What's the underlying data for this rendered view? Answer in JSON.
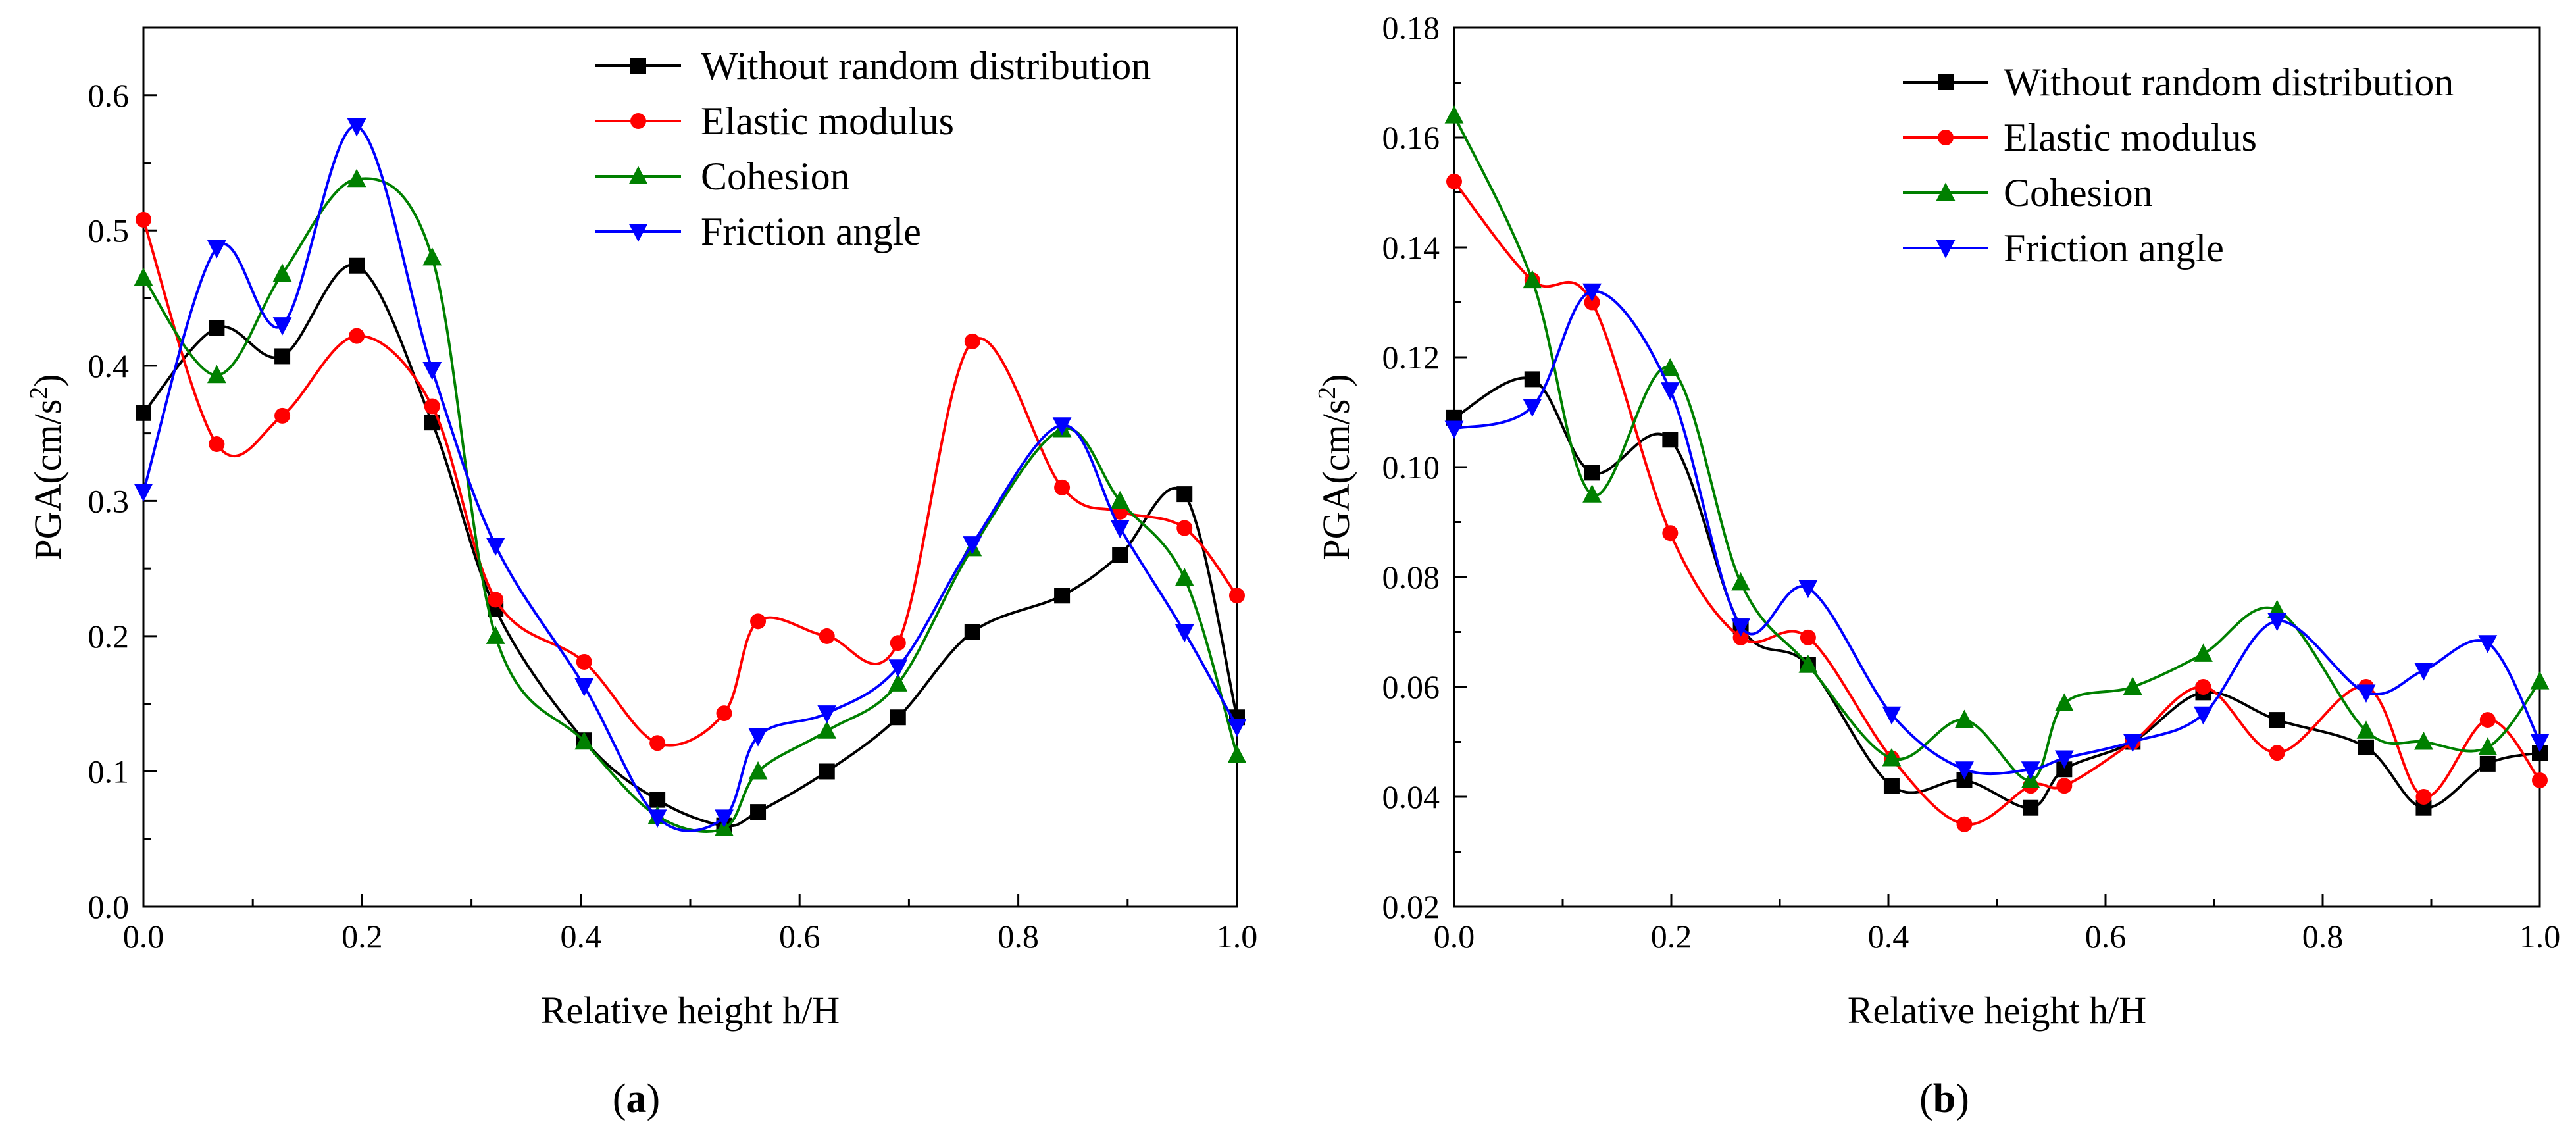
{
  "chart_data": [
    {
      "type": "line",
      "panel_label": "(a)",
      "panel_letter": "a",
      "xlabel": "Relative height h/H",
      "ylabel_prefix": "PGA(cm/s",
      "ylabel_sup": "2",
      "ylabel_suffix": ")",
      "xlim": [
        0,
        1
      ],
      "ylim": [
        0,
        0.65
      ],
      "xticks": [
        0,
        0.2,
        0.4,
        0.6,
        0.8,
        1.0
      ],
      "xtick_labels": [
        "0.0",
        "0.2",
        "0.4",
        "0.6",
        "0.8",
        "1.0"
      ],
      "yticks": [
        0,
        0.1,
        0.2,
        0.3,
        0.4,
        0.5,
        0.6
      ],
      "ytick_labels": [
        "0.0",
        "0.1",
        "0.2",
        "0.3",
        "0.4",
        "0.5",
        "0.6"
      ],
      "legend_position": "top-right",
      "x": [
        0.0,
        0.067,
        0.127,
        0.195,
        0.264,
        0.322,
        0.403,
        0.47,
        0.531,
        0.562,
        0.625,
        0.69,
        0.758,
        0.84,
        0.893,
        0.952,
        1.0
      ],
      "series": [
        {
          "name": "Without random distribution",
          "color": "#000000",
          "marker": "square",
          "values": [
            0.365,
            0.428,
            0.407,
            0.474,
            0.358,
            0.22,
            0.123,
            0.079,
            0.06,
            0.07,
            0.1,
            0.14,
            0.203,
            0.23,
            0.26,
            0.305,
            0.14
          ]
        },
        {
          "name": "Elastic modulus",
          "color": "#ff0000",
          "marker": "circle",
          "values": [
            0.508,
            0.342,
            0.363,
            0.422,
            0.37,
            0.227,
            0.181,
            0.121,
            0.143,
            0.211,
            0.2,
            0.195,
            0.418,
            0.31,
            0.292,
            0.28,
            0.23
          ]
        },
        {
          "name": "Cohesion",
          "color": "#008000",
          "marker": "triangle-up",
          "values": [
            0.465,
            0.393,
            0.468,
            0.538,
            0.48,
            0.2,
            0.122,
            0.067,
            0.058,
            0.1,
            0.13,
            0.165,
            0.265,
            0.353,
            0.3,
            0.243,
            0.112
          ]
        },
        {
          "name": "Friction angle",
          "color": "#0000ff",
          "marker": "triangle-down",
          "values": [
            0.307,
            0.487,
            0.43,
            0.577,
            0.397,
            0.267,
            0.163,
            0.066,
            0.066,
            0.126,
            0.143,
            0.177,
            0.268,
            0.356,
            0.28,
            0.203,
            0.133
          ]
        }
      ]
    },
    {
      "type": "line",
      "panel_label": "(b)",
      "panel_letter": "b",
      "xlabel": "Relative height h/H",
      "ylabel_prefix": "PGA(cm/s",
      "ylabel_sup": "2",
      "ylabel_suffix": ")",
      "xlim": [
        0,
        1
      ],
      "ylim": [
        0.02,
        0.18
      ],
      "xticks": [
        0,
        0.2,
        0.4,
        0.6,
        0.8,
        1.0
      ],
      "xtick_labels": [
        "0.0",
        "0.2",
        "0.4",
        "0.6",
        "0.8",
        "1.0"
      ],
      "yticks": [
        0.02,
        0.04,
        0.06,
        0.08,
        0.1,
        0.12,
        0.14,
        0.16,
        0.18
      ],
      "ytick_labels": [
        "0.02",
        "0.04",
        "0.06",
        "0.08",
        "0.10",
        "0.12",
        "0.14",
        "0.16",
        "0.18"
      ],
      "legend_position": "top-right",
      "x": [
        0.0,
        0.072,
        0.127,
        0.199,
        0.264,
        0.326,
        0.403,
        0.47,
        0.531,
        0.562,
        0.625,
        0.69,
        0.758,
        0.84,
        0.893,
        0.952,
        1.0
      ],
      "series": [
        {
          "name": "Without random distribution",
          "color": "#000000",
          "marker": "square",
          "values": [
            0.109,
            0.116,
            0.099,
            0.105,
            0.071,
            0.064,
            0.042,
            0.043,
            0.038,
            0.045,
            0.05,
            0.059,
            0.054,
            0.049,
            0.038,
            0.046,
            0.048
          ]
        },
        {
          "name": "Elastic modulus",
          "color": "#ff0000",
          "marker": "circle",
          "values": [
            0.152,
            0.134,
            0.13,
            0.088,
            0.069,
            0.069,
            0.047,
            0.035,
            0.042,
            0.042,
            0.05,
            0.06,
            0.048,
            0.06,
            0.04,
            0.054,
            0.043
          ]
        },
        {
          "name": "Cohesion",
          "color": "#008000",
          "marker": "triangle-up",
          "values": [
            0.164,
            0.134,
            0.095,
            0.118,
            0.079,
            0.064,
            0.047,
            0.054,
            0.043,
            0.057,
            0.06,
            0.066,
            0.074,
            0.052,
            0.05,
            0.049,
            0.061
          ]
        },
        {
          "name": "Friction angle",
          "color": "#0000ff",
          "marker": "triangle-down",
          "values": [
            0.107,
            0.111,
            0.132,
            0.114,
            0.071,
            0.078,
            0.055,
            0.045,
            0.045,
            0.047,
            0.05,
            0.055,
            0.072,
            0.059,
            0.063,
            0.068,
            0.05
          ]
        }
      ]
    }
  ]
}
